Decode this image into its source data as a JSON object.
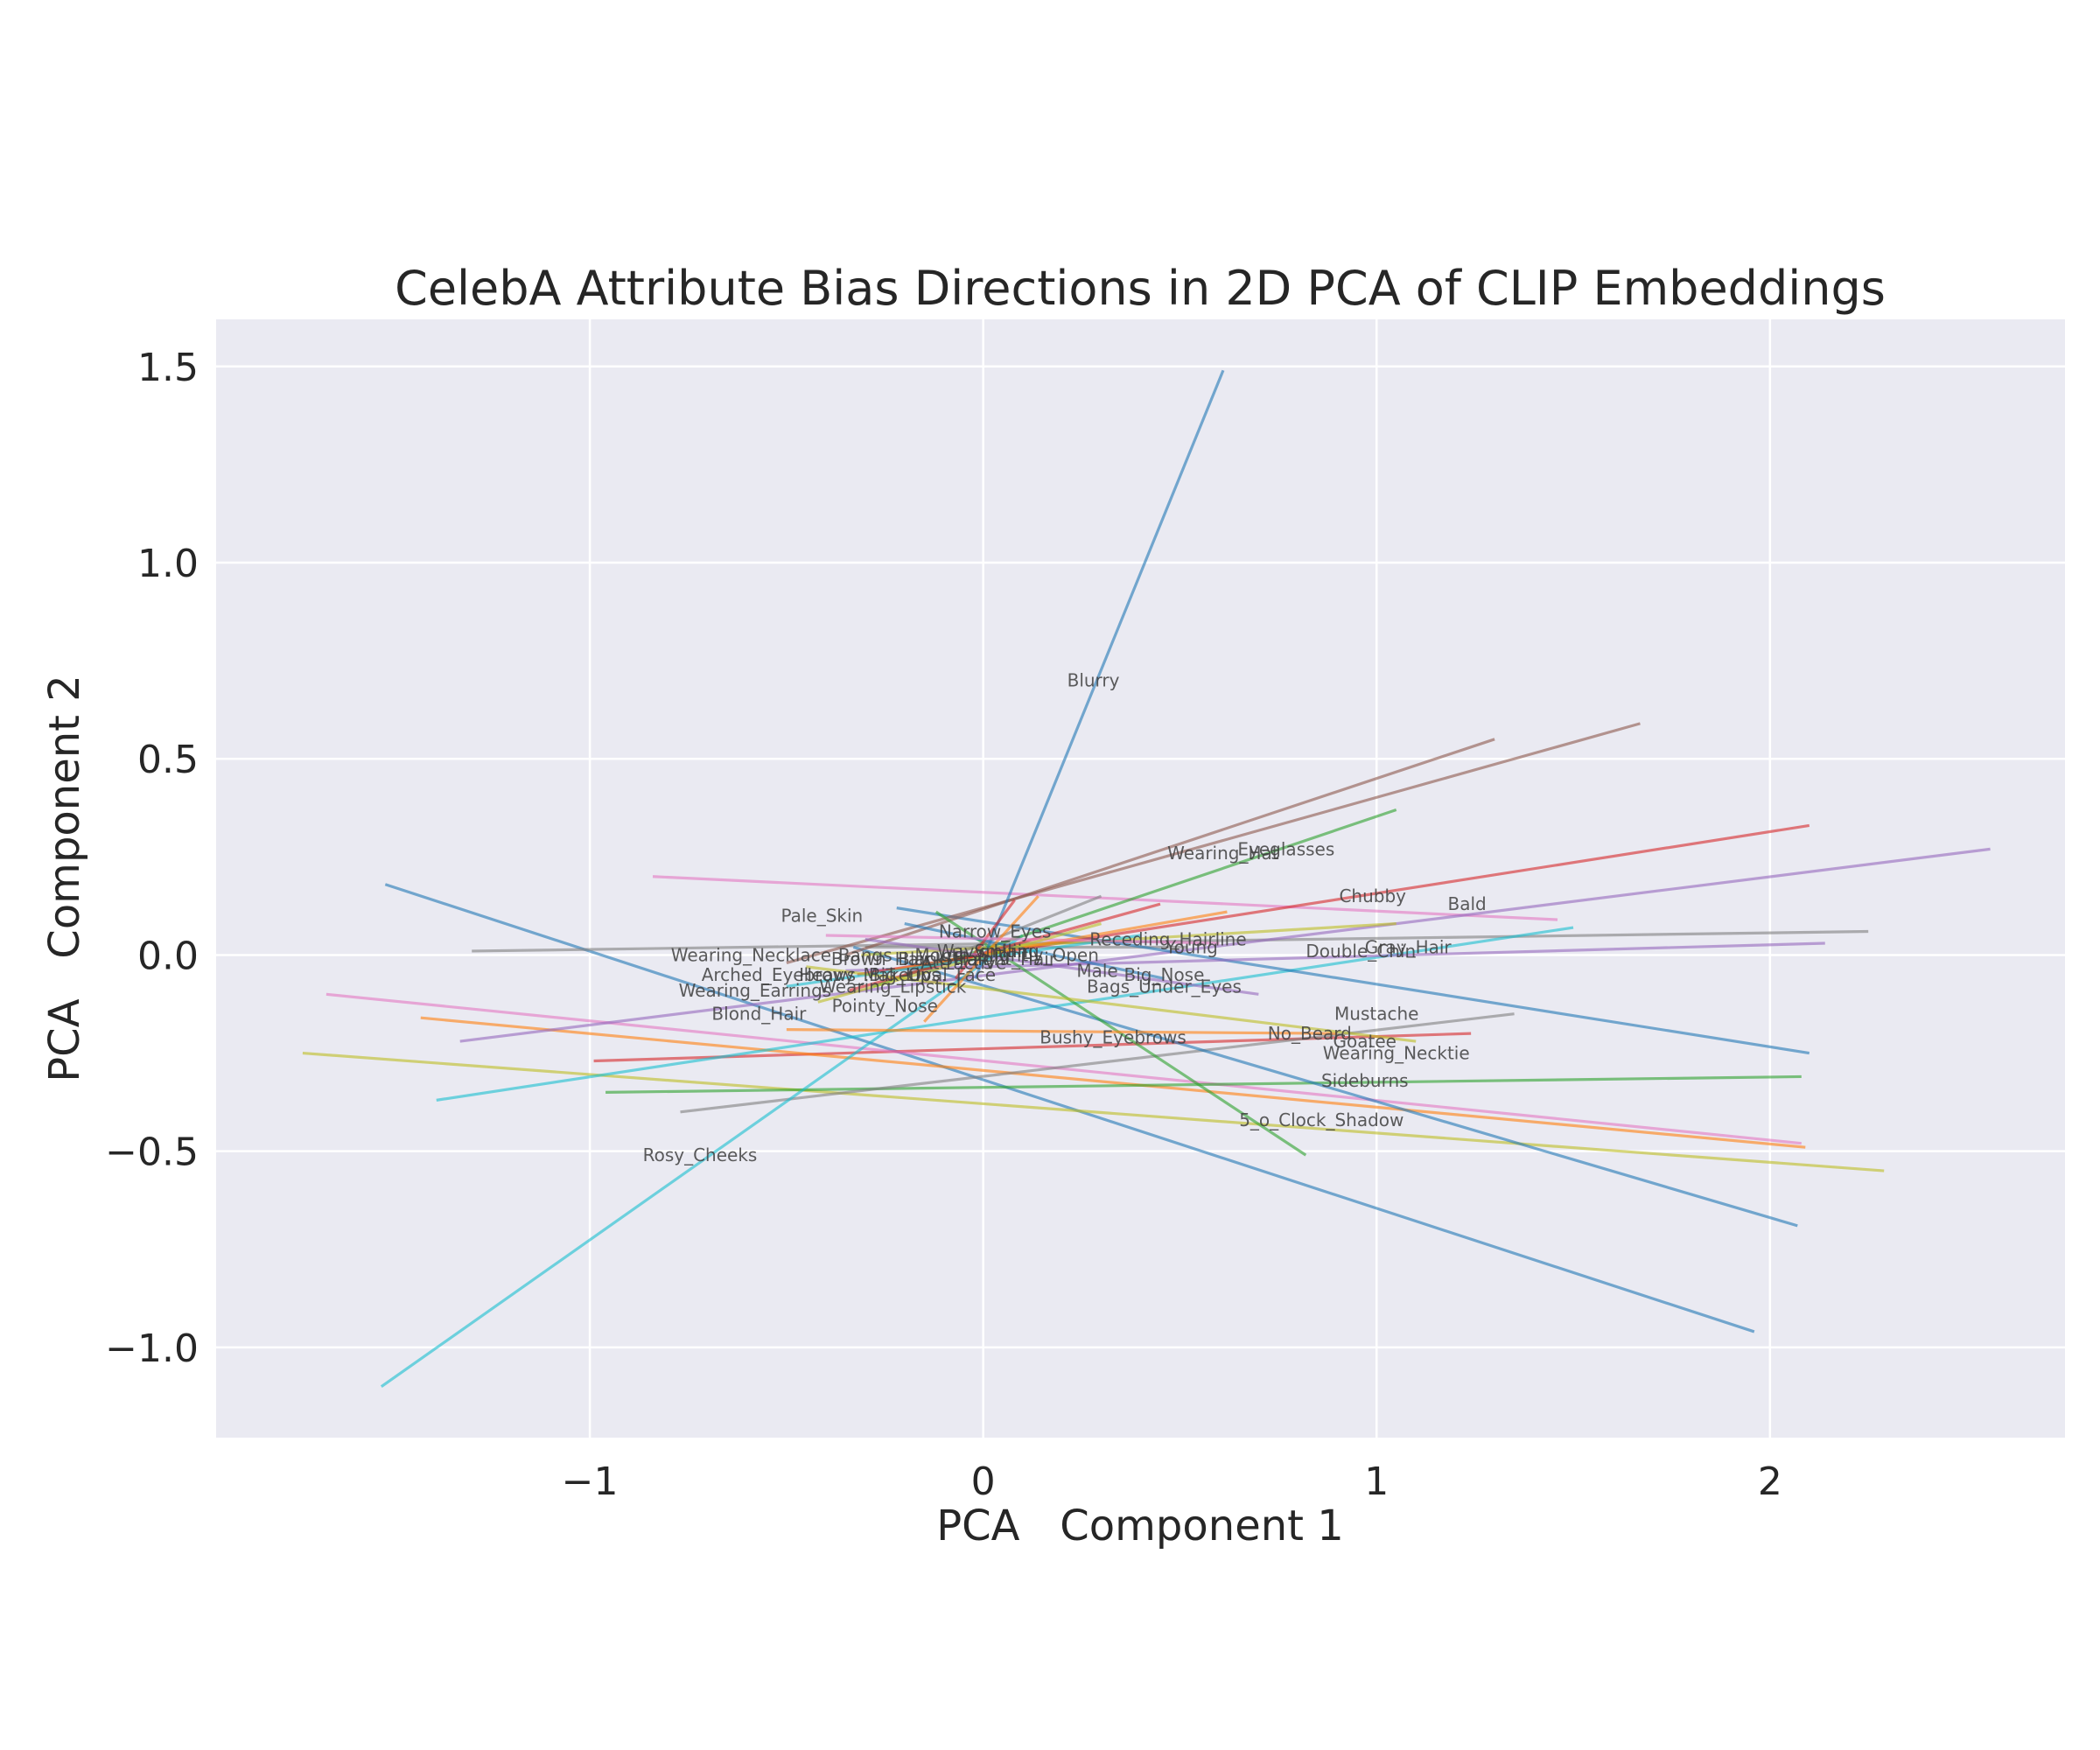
{
  "chart_data": {
    "type": "line",
    "title": "CelebA Attribute Bias Directions in 2D PCA of CLIP Embeddings",
    "xlabel": "PCA   Component 1",
    "ylabel": "PCA   Component 2",
    "xlim": [
      -1.95,
      2.75
    ],
    "ylim": [
      -1.23,
      1.62
    ],
    "xticks": [
      {
        "value": -1,
        "label": "−1"
      },
      {
        "value": 0,
        "label": "0"
      },
      {
        "value": 1,
        "label": "1"
      },
      {
        "value": 2,
        "label": "2"
      }
    ],
    "yticks": [
      {
        "value": 1.5,
        "label": "1.5"
      },
      {
        "value": 1.0,
        "label": "1.0"
      },
      {
        "value": 0.5,
        "label": "0.5"
      },
      {
        "value": 0.0,
        "label": "0.0"
      },
      {
        "value": -0.5,
        "label": "−0.5"
      },
      {
        "value": -1.0,
        "label": "−1.0"
      }
    ],
    "grid": true,
    "colors": [
      "#1f77b4",
      "#ff7f0e",
      "#2ca02c",
      "#d62728",
      "#9467bd",
      "#8c564b",
      "#e377c2",
      "#7f7f7f",
      "#bcbd22",
      "#17becf"
    ],
    "segments": [
      {
        "x": [
          -1.52,
          1.96
        ],
        "y": [
          0.18,
          -0.96
        ],
        "c": 0
      },
      {
        "x": [
          -0.99,
          1.24
        ],
        "y": [
          -0.27,
          -0.2
        ],
        "c": 3
      },
      {
        "x": [
          -0.3,
          0.52
        ],
        "y": [
          0.02,
          0.02
        ],
        "c": 7
      },
      {
        "x": [
          -1.73,
          2.29
        ],
        "y": [
          -0.25,
          -0.55
        ],
        "c": 8
      },
      {
        "x": [
          -0.84,
          1.46
        ],
        "y": [
          0.2,
          0.09
        ],
        "c": 6
      },
      {
        "x": [
          -1.43,
          2.09
        ],
        "y": [
          -0.16,
          -0.49
        ],
        "c": 1
      },
      {
        "x": [
          -1.3,
          2.25
        ],
        "y": [
          0.01,
          0.06
        ],
        "c": 7
      },
      {
        "x": [
          -1.67,
          2.08
        ],
        "y": [
          -0.1,
          -0.48
        ],
        "c": 6
      },
      {
        "x": [
          -1.39,
          1.5
        ],
        "y": [
          -0.37,
          0.07
        ],
        "c": 9
      },
      {
        "x": [
          -0.96,
          2.08
        ],
        "y": [
          -0.35,
          -0.31
        ],
        "c": 2
      },
      {
        "x": [
          -1.33,
          2.56
        ],
        "y": [
          -0.22,
          0.27
        ],
        "c": 4
      },
      {
        "x": [
          -0.77,
          1.35
        ],
        "y": [
          -0.4,
          -0.15
        ],
        "c": 7
      },
      {
        "x": [
          -1.53,
          0.1
        ],
        "y": [
          -1.1,
          0.05
        ],
        "c": 9
      },
      {
        "x": [
          -0.22,
          2.1
        ],
        "y": [
          0.12,
          -0.25
        ],
        "c": 0
      },
      {
        "x": [
          -0.33,
          2.07
        ],
        "y": [
          0.02,
          -0.69
        ],
        "c": 0
      },
      {
        "x": [
          -0.35,
          2.14
        ],
        "y": [
          -0.04,
          0.03
        ],
        "c": 4
      },
      {
        "x": [
          -0.5,
          1.67
        ],
        "y": [
          -0.02,
          0.59
        ],
        "c": 5
      },
      {
        "x": [
          -0.35,
          1.3
        ],
        "y": [
          0.0,
          0.55
        ],
        "c": 5
      },
      {
        "x": [
          -0.28,
          1.05
        ],
        "y": [
          -0.08,
          0.37
        ],
        "c": 2
      },
      {
        "x": [
          -0.32,
          2.1
        ],
        "y": [
          -0.05,
          0.33
        ],
        "c": 3
      },
      {
        "x": [
          -0.31,
          1.05
        ],
        "y": [
          0.0,
          0.08
        ],
        "c": 8
      },
      {
        "x": [
          -0.24,
          0.62
        ],
        "y": [
          -0.04,
          0.11
        ],
        "c": 1
      },
      {
        "x": [
          -0.12,
          0.82
        ],
        "y": [
          0.11,
          -0.51
        ],
        "c": 2
      },
      {
        "x": [
          -0.02,
          0.61
        ],
        "y": [
          -0.06,
          1.49
        ],
        "c": 0
      },
      {
        "x": [
          -0.2,
          0.3
        ],
        "y": [
          -0.05,
          0.15
        ],
        "c": 7
      },
      {
        "x": [
          -0.2,
          0.46
        ],
        "y": [
          0.08,
          -0.06
        ],
        "c": 0
      },
      {
        "x": [
          -0.34,
          0.45
        ],
        "y": [
          -0.09,
          0.13
        ],
        "c": 3
      },
      {
        "x": [
          -0.15,
          0.14
        ],
        "y": [
          -0.17,
          0.15
        ],
        "c": 1
      },
      {
        "x": [
          -0.07,
          0.08
        ],
        "y": [
          -0.06,
          0.14
        ],
        "c": 3
      },
      {
        "x": [
          -0.5,
          0.9
        ],
        "y": [
          -0.19,
          -0.2
        ],
        "c": 1
      },
      {
        "x": [
          -0.5,
          0.4
        ],
        "y": [
          -0.08,
          0.05
        ],
        "c": 9
      },
      {
        "x": [
          -0.4,
          0.6
        ],
        "y": [
          0.05,
          0.03
        ],
        "c": 6
      },
      {
        "x": [
          -0.42,
          0.3
        ],
        "y": [
          -0.12,
          0.08
        ],
        "c": 8
      },
      {
        "x": [
          -0.3,
          0.7
        ],
        "y": [
          0.04,
          -0.1
        ],
        "c": 4
      },
      {
        "x": [
          -0.45,
          1.1
        ],
        "y": [
          -0.03,
          -0.22
        ],
        "c": 8
      }
    ],
    "annotations": [
      {
        "text": "Blurry",
        "x": 0.28,
        "y": 0.7
      },
      {
        "text": "Eyeglasses",
        "x": 0.77,
        "y": 0.27
      },
      {
        "text": "Wearing_Hat",
        "x": 0.61,
        "y": 0.26
      },
      {
        "text": "Chubby",
        "x": 0.99,
        "y": 0.15
      },
      {
        "text": "Bald",
        "x": 1.23,
        "y": 0.13
      },
      {
        "text": "Pale_Skin",
        "x": -0.41,
        "y": 0.1
      },
      {
        "text": "Narrow_Eyes",
        "x": 0.03,
        "y": 0.06
      },
      {
        "text": "Receding_Hairline",
        "x": 0.47,
        "y": 0.04
      },
      {
        "text": "Young",
        "x": 0.53,
        "y": 0.02
      },
      {
        "text": "Gray_Hair",
        "x": 1.08,
        "y": 0.02
      },
      {
        "text": "Double_Chin",
        "x": 0.96,
        "y": 0.01
      },
      {
        "text": "Wearing_Necklace",
        "x": -0.59,
        "y": 0.0
      },
      {
        "text": "Mouth_Slightly_Open",
        "x": 0.06,
        "y": 0.0
      },
      {
        "text": "Smiling",
        "x": 0.06,
        "y": 0.01
      },
      {
        "text": "Wavy_Hair",
        "x": 0.0,
        "y": 0.01
      },
      {
        "text": "Bangs",
        "x": -0.3,
        "y": 0.0
      },
      {
        "text": "Brown_Hair",
        "x": -0.26,
        "y": -0.01
      },
      {
        "text": "Straight_Hair",
        "x": 0.04,
        "y": -0.01
      },
      {
        "text": "Attractive",
        "x": -0.05,
        "y": -0.02
      },
      {
        "text": "Black_Hair",
        "x": -0.1,
        "y": -0.01
      },
      {
        "text": "Male",
        "x": 0.29,
        "y": -0.04
      },
      {
        "text": "Big_Nose",
        "x": 0.46,
        "y": -0.05
      },
      {
        "text": "Arched_Eyebrows",
        "x": -0.52,
        "y": -0.05
      },
      {
        "text": "Heavy_Makeup",
        "x": -0.3,
        "y": -0.05
      },
      {
        "text": "Oval_Face",
        "x": -0.08,
        "y": -0.05
      },
      {
        "text": "Big_Lips",
        "x": -0.2,
        "y": -0.05
      },
      {
        "text": "Bags_Under_Eyes",
        "x": 0.46,
        "y": -0.08
      },
      {
        "text": "Wearing_Earrings",
        "x": -0.58,
        "y": -0.09
      },
      {
        "text": "Wearing_Lipstick",
        "x": -0.23,
        "y": -0.08
      },
      {
        "text": "Pointy_Nose",
        "x": -0.25,
        "y": -0.13
      },
      {
        "text": "Blond_Hair",
        "x": -0.57,
        "y": -0.15
      },
      {
        "text": "Mustache",
        "x": 1.0,
        "y": -0.15
      },
      {
        "text": "Bushy_Eyebrows",
        "x": 0.33,
        "y": -0.21
      },
      {
        "text": "No_Beard",
        "x": 0.83,
        "y": -0.2
      },
      {
        "text": "Goatee",
        "x": 0.97,
        "y": -0.22
      },
      {
        "text": "Wearing_Necktie",
        "x": 1.05,
        "y": -0.25
      },
      {
        "text": "Sideburns",
        "x": 0.97,
        "y": -0.32
      },
      {
        "text": "5_o_Clock_Shadow",
        "x": 0.86,
        "y": -0.42
      },
      {
        "text": "Rosy_Cheeks",
        "x": -0.72,
        "y": -0.51
      }
    ]
  }
}
